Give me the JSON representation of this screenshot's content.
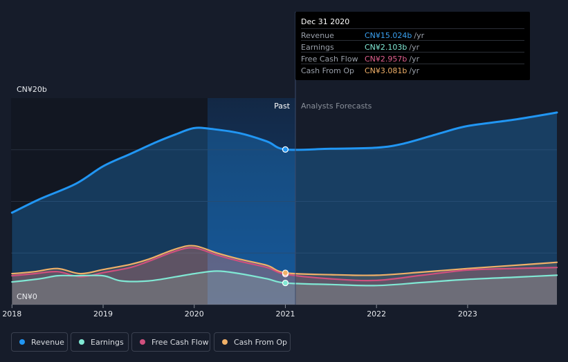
{
  "chart_data": {
    "type": "area",
    "y_axis": {
      "top_label": "CN¥20b",
      "bottom_label": "CN¥0",
      "range": [
        0,
        20
      ],
      "unit": "CN¥b"
    },
    "x_ticks": [
      "2018",
      "2019",
      "2020",
      "2021",
      "2022",
      "2023"
    ],
    "x_range": [
      2017.99,
      2023.98
    ],
    "highlight_range": [
      2020.0,
      2021.0
    ],
    "divider_x": 2021.0,
    "past_label": "Past",
    "forecast_label": "Analysts Forecasts",
    "grid": true,
    "legend_position": "bottom-left",
    "series": [
      {
        "name": "Revenue",
        "color": "#2196f3",
        "points": [
          [
            2018.0,
            8.9
          ],
          [
            2018.3,
            10.2
          ],
          [
            2018.7,
            11.7
          ],
          [
            2019.0,
            13.4
          ],
          [
            2019.3,
            14.6
          ],
          [
            2019.6,
            15.8
          ],
          [
            2019.8,
            16.5
          ],
          [
            2020.0,
            17.1
          ],
          [
            2020.2,
            17.0
          ],
          [
            2020.5,
            16.6
          ],
          [
            2020.8,
            15.8
          ],
          [
            2021.0,
            15.024
          ],
          [
            2021.5,
            15.1
          ],
          [
            2022.0,
            15.2
          ],
          [
            2022.3,
            15.6
          ],
          [
            2022.7,
            16.6
          ],
          [
            2023.0,
            17.3
          ],
          [
            2023.5,
            17.9
          ],
          [
            2023.98,
            18.6
          ]
        ]
      },
      {
        "name": "Earnings",
        "color": "#80e8d4",
        "points": [
          [
            2018.0,
            2.2
          ],
          [
            2018.3,
            2.5
          ],
          [
            2018.5,
            2.8
          ],
          [
            2018.7,
            2.8
          ],
          [
            2019.0,
            2.8
          ],
          [
            2019.2,
            2.3
          ],
          [
            2019.5,
            2.3
          ],
          [
            2019.8,
            2.7
          ],
          [
            2020.0,
            3.0
          ],
          [
            2020.25,
            3.25
          ],
          [
            2020.5,
            3.0
          ],
          [
            2020.8,
            2.5
          ],
          [
            2021.0,
            2.103
          ],
          [
            2021.5,
            1.95
          ],
          [
            2022.0,
            1.85
          ],
          [
            2022.5,
            2.15
          ],
          [
            2023.0,
            2.45
          ],
          [
            2023.5,
            2.65
          ],
          [
            2023.98,
            2.85
          ]
        ]
      },
      {
        "name": "Free Cash Flow",
        "color": "#d0507e",
        "points": [
          [
            2018.0,
            2.8
          ],
          [
            2018.25,
            3.0
          ],
          [
            2018.5,
            3.2
          ],
          [
            2018.75,
            2.7
          ],
          [
            2019.0,
            3.1
          ],
          [
            2019.3,
            3.6
          ],
          [
            2019.5,
            4.2
          ],
          [
            2019.8,
            5.2
          ],
          [
            2020.0,
            5.5
          ],
          [
            2020.25,
            4.8
          ],
          [
            2020.5,
            4.2
          ],
          [
            2020.8,
            3.6
          ],
          [
            2021.0,
            2.957
          ],
          [
            2021.5,
            2.5
          ],
          [
            2022.0,
            2.35
          ],
          [
            2022.5,
            2.85
          ],
          [
            2023.0,
            3.35
          ],
          [
            2023.5,
            3.5
          ],
          [
            2023.98,
            3.6
          ]
        ]
      },
      {
        "name": "Cash From Op",
        "color": "#f0b068",
        "points": [
          [
            2018.0,
            3.0
          ],
          [
            2018.25,
            3.2
          ],
          [
            2018.5,
            3.5
          ],
          [
            2018.75,
            3.0
          ],
          [
            2019.0,
            3.4
          ],
          [
            2019.3,
            3.9
          ],
          [
            2019.5,
            4.4
          ],
          [
            2019.8,
            5.4
          ],
          [
            2020.0,
            5.7
          ],
          [
            2020.25,
            5.0
          ],
          [
            2020.5,
            4.4
          ],
          [
            2020.8,
            3.8
          ],
          [
            2021.0,
            3.081
          ],
          [
            2021.5,
            2.9
          ],
          [
            2022.0,
            2.85
          ],
          [
            2022.5,
            3.15
          ],
          [
            2023.0,
            3.5
          ],
          [
            2023.5,
            3.8
          ],
          [
            2023.98,
            4.1
          ]
        ]
      }
    ]
  },
  "tooltip": {
    "date": "Dec 31 2020",
    "rows": [
      {
        "label": "Revenue",
        "value": "CN¥15.024b",
        "unit": "/yr",
        "color": "#3aa0f0"
      },
      {
        "label": "Earnings",
        "value": "CN¥2.103b",
        "unit": "/yr",
        "color": "#80e8d4"
      },
      {
        "label": "Free Cash Flow",
        "value": "CN¥2.957b",
        "unit": "/yr",
        "color": "#e0608e"
      },
      {
        "label": "Cash From Op",
        "value": "CN¥3.081b",
        "unit": "/yr",
        "color": "#f0b068"
      }
    ]
  },
  "legend": [
    {
      "label": "Revenue",
      "color": "#2196f3"
    },
    {
      "label": "Earnings",
      "color": "#80e8d4"
    },
    {
      "label": "Free Cash Flow",
      "color": "#d0507e"
    },
    {
      "label": "Cash From Op",
      "color": "#f0b068"
    }
  ]
}
